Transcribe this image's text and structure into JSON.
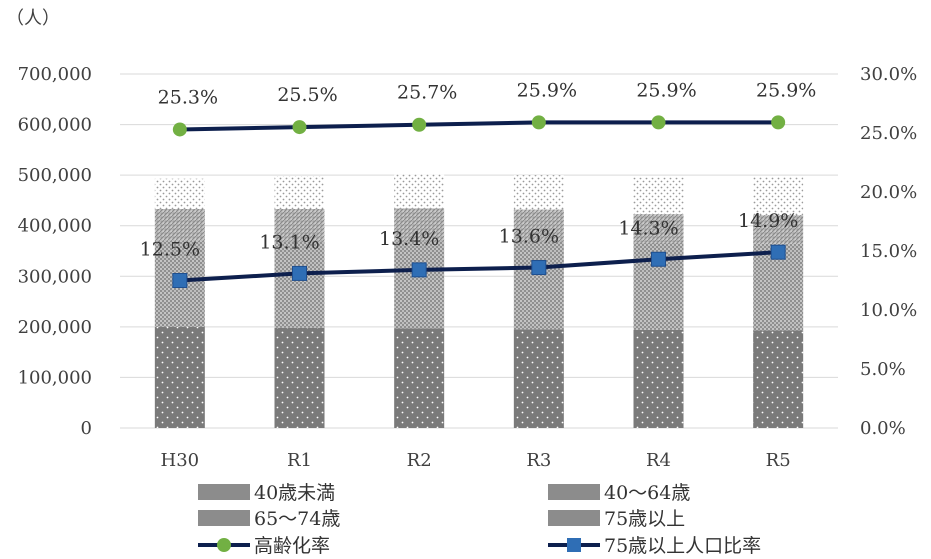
{
  "chart_data": {
    "type": "bar",
    "subtype": "stacked-bar-with-line-on-secondary-axis",
    "unit_label": "（人）",
    "categories": [
      "H30",
      "R1",
      "R2",
      "R3",
      "R4",
      "R5"
    ],
    "y_left": {
      "ylim": [
        0,
        700000
      ],
      "ticks": [
        "0",
        "100,000",
        "200,000",
        "300,000",
        "400,000",
        "500,000",
        "600,000",
        "700,000"
      ]
    },
    "y_right": {
      "ylim": [
        0,
        30
      ],
      "ticks": [
        "0.0%",
        "5.0%",
        "10.0%",
        "15.0%",
        "20.0%",
        "25.0%",
        "30.0%"
      ]
    },
    "grid": true,
    "legend_position": "bottom",
    "bar_series": [
      {
        "name": "40歳未満",
        "values": [
          200000,
          198000,
          197000,
          195000,
          194000,
          193000
        ],
        "color": "#7a7a7a",
        "pattern": "dots-on-dark"
      },
      {
        "name": "40〜64歳",
        "values": [
          170000,
          170000,
          172000,
          173000,
          172000,
          171000
        ],
        "color": "#9a9a9a",
        "pattern": "grid-medium"
      },
      {
        "name": "65〜74歳",
        "values": [
          63000,
          65000,
          65000,
          64000,
          57000,
          57000
        ],
        "color": "#b0b0b0",
        "pattern": "diagonal-dense"
      },
      {
        "name": "75歳以上",
        "values": [
          60000,
          65000,
          67000,
          68000,
          72000,
          75000
        ],
        "color": "#d8d8d8",
        "pattern": "dots-sparse"
      }
    ],
    "line_series": [
      {
        "name": "高齢化率",
        "values": [
          25.3,
          25.5,
          25.7,
          25.9,
          25.9,
          25.9
        ],
        "labels": [
          "25.3%",
          "25.5%",
          "25.7%",
          "25.9%",
          "25.9%",
          "25.9%"
        ],
        "color": "#0d1f4d",
        "marker": "circle",
        "marker_color": "#72b043"
      },
      {
        "name": "75歳以上人口比率",
        "values": [
          12.5,
          13.1,
          13.4,
          13.6,
          14.3,
          14.9
        ],
        "labels": [
          "12.5%",
          "13.1%",
          "13.4%",
          "13.6%",
          "14.3%",
          "14.9%"
        ],
        "color": "#0d1f4d",
        "marker": "square",
        "marker_color": "#2f6eb5"
      }
    ]
  }
}
